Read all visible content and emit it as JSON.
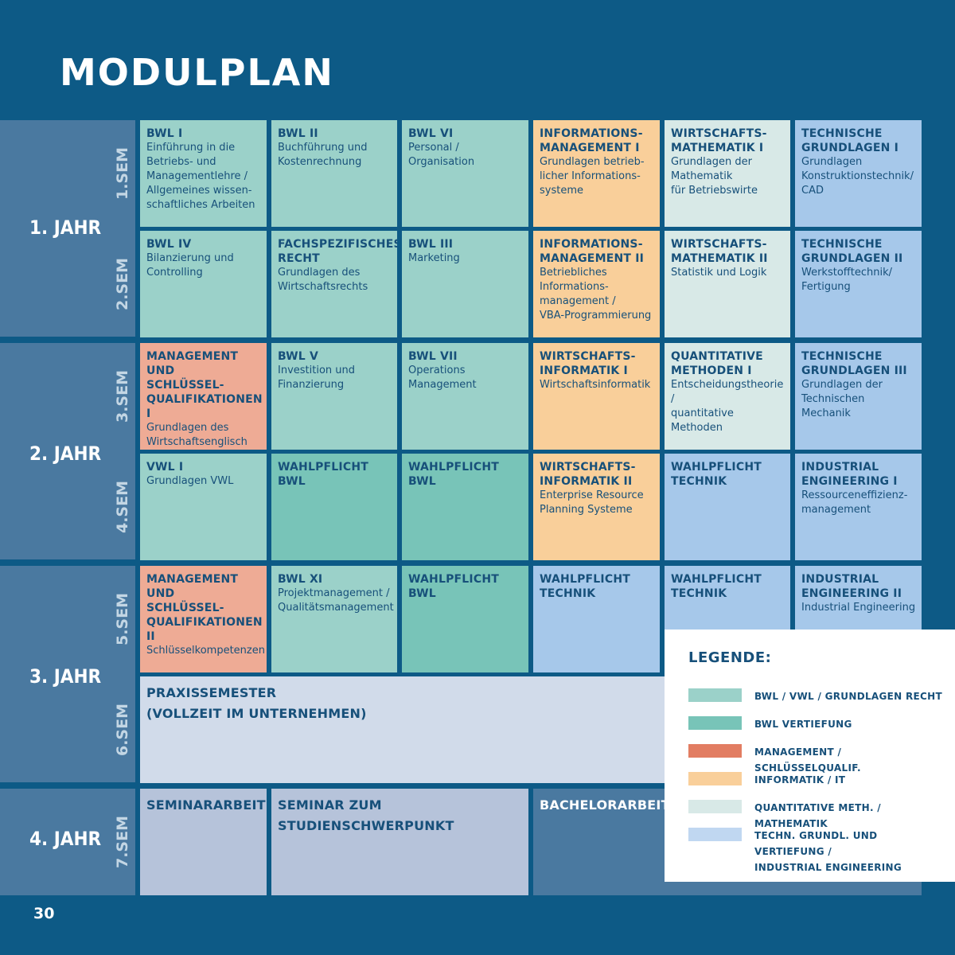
{
  "title": "MODULPLAN",
  "years": [
    {
      "label": "1. JAHR",
      "semesters": [
        "1.SEM",
        "2.SEM"
      ]
    },
    {
      "label": "2. JAHR",
      "semesters": [
        "3.SEM",
        "4.SEM"
      ]
    },
    {
      "label": "3. JAHR",
      "semesters": [
        "5.SEM",
        "6.SEM"
      ]
    },
    {
      "label": "4. JAHR",
      "semesters": [
        "7.SEM"
      ]
    }
  ],
  "modules": {
    "s1": [
      {
        "title": "BWL I",
        "desc": "Einführung in die\nBetriebs- und\nManagementlehre /\nAllgemeines wissen-\nschaftliches Arbeiten",
        "cat": "bwl"
      },
      {
        "title": "BWL II",
        "desc": "Buchführung und\nKostenrechnung",
        "cat": "bwl"
      },
      {
        "title": "BWL VI",
        "desc": "Personal / Organisation",
        "cat": "bwl"
      },
      {
        "title": "INFORMATIONS-\nMANAGEMENT I",
        "desc": "Grundlagen betrieb-\nlicher Informations-\nsysteme",
        "cat": "info"
      },
      {
        "title": "WIRTSCHAFTS-\nMATHEMATIK I",
        "desc": "Grundlagen der\nMathematik\nfür Betriebswirte",
        "cat": "quant"
      },
      {
        "title": "TECHNISCHE\nGRUNDLAGEN I",
        "desc": "Grundlagen\nKonstruktionstechnik/\nCAD",
        "cat": "tech"
      }
    ],
    "s2": [
      {
        "title": "BWL IV",
        "desc": "Bilanzierung und\nControlling",
        "cat": "bwl"
      },
      {
        "title": "FACHSPEZIFISCHES\nRECHT",
        "desc": "Grundlagen des\nWirtschaftsrechts",
        "cat": "bwl"
      },
      {
        "title": "BWL III",
        "desc": "Marketing",
        "cat": "bwl"
      },
      {
        "title": "INFORMATIONS-\nMANAGEMENT II",
        "desc": "Betriebliches\nInformations-\nmanagement /\nVBA-Programmierung",
        "cat": "info"
      },
      {
        "title": "WIRTSCHAFTS-\nMATHEMATIK II",
        "desc": "Statistik und Logik",
        "cat": "quant"
      },
      {
        "title": "TECHNISCHE\nGRUNDLAGEN  II",
        "desc": "Werkstofftechnik/\nFertigung",
        "cat": "tech"
      }
    ],
    "s3": [
      {
        "title": "MANAGEMENT UND\nSCHLÜSSEL-\nQUALIFIKATIONEN I",
        "desc": "Grundlagen des\nWirtschaftsenglisch",
        "cat": "mgmt"
      },
      {
        "title": "BWL V",
        "desc": "Investition und\nFinanzierung",
        "cat": "bwl"
      },
      {
        "title": "BWL VII",
        "desc": "Operations\nManagement",
        "cat": "bwl"
      },
      {
        "title": "WIRTSCHAFTS-\nINFORMATIK I",
        "desc": "Wirtschaftsinformatik",
        "cat": "info"
      },
      {
        "title": "QUANTITATIVE\nMETHODEN I",
        "desc": "Entscheidungstheorie /\nquantitative Methoden",
        "cat": "quant"
      },
      {
        "title": "TECHNISCHE\nGRUNDLAGEN III",
        "desc": "Grundlagen der\nTechnischen Mechanik",
        "cat": "tech"
      }
    ],
    "s4": [
      {
        "title": "VWL I",
        "desc": "Grundlagen VWL",
        "cat": "bwl"
      },
      {
        "title": "WAHLPFLICHT\nBWL",
        "desc": "",
        "cat": "vert"
      },
      {
        "title": "WAHLPFLICHT\nBWL",
        "desc": "",
        "cat": "vert"
      },
      {
        "title": "WIRTSCHAFTS-\nINFORMATIK II",
        "desc": "Enterprise Resource\nPlanning Systeme",
        "cat": "info"
      },
      {
        "title": "WAHLPFLICHT\nTECHNIK",
        "desc": "",
        "cat": "tech"
      },
      {
        "title": "INDUSTRIAL\nENGINEERING I",
        "desc": "Ressourceneffizienz-\nmanagement",
        "cat": "tech"
      }
    ],
    "s5": [
      {
        "title": "MANAGEMENT UND\nSCHLÜSSEL-\nQUALIFIKATIONEN II",
        "desc": "Schlüsselkompetenzen",
        "cat": "mgmt"
      },
      {
        "title": "BWL XI",
        "desc": "Projektmanagement /\nQualitätsmanagement",
        "cat": "bwl"
      },
      {
        "title": "WAHLPFLICHT\nBWL",
        "desc": "",
        "cat": "vert"
      },
      {
        "title": "WAHLPFLICHT\nTECHNIK",
        "desc": "",
        "cat": "tech"
      },
      {
        "title": "WAHLPFLICHT\nTECHNIK",
        "desc": "",
        "cat": "tech"
      },
      {
        "title": "INDUSTRIAL\nENGINEERING II",
        "desc": "Industrial Engineering",
        "cat": "tech"
      }
    ],
    "s6": {
      "title": "PRAXISSEMESTER\n(VOLLZEIT IM UNTERNEHMEN)"
    },
    "s7": [
      {
        "title": "SEMINARARBEIT"
      },
      {
        "title": "SEMINAR ZUM\nSTUDIENSCHWERPUNKT"
      },
      {
        "title": "BACHELORARBEIT"
      }
    ]
  },
  "legend": {
    "title": "LEGENDE:",
    "items": [
      {
        "label": "BWL / VWL / GRUNDLAGEN RECHT",
        "color": "#9bd1c9"
      },
      {
        "label": "BWL VERTIEFUNG",
        "color": "#78c4b8"
      },
      {
        "label": "MANAGEMENT / SCHLÜSSELQUALIF.",
        "color": "#e27d62"
      },
      {
        "label": "INFORMATIK / IT",
        "color": "#f9cf9a"
      },
      {
        "label": "QUANTITATIVE METH. / MATHEMATIK",
        "color": "#d8e9e7"
      },
      {
        "label": "TECHN. GRUNDL. UND VERTIEFUNG /\nINDUSTRIAL ENGINEERING",
        "color": "#c0d7f1"
      }
    ]
  },
  "page_number": "30"
}
